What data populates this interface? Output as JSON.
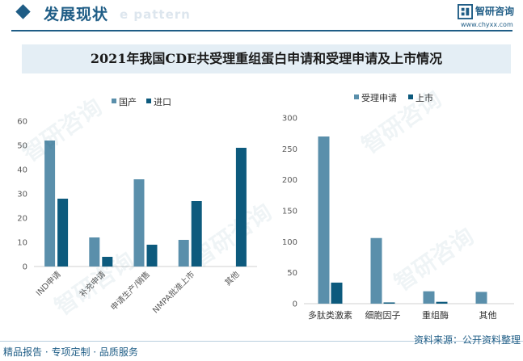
{
  "header": {
    "title": "发展现状",
    "watermark_text": "e pattern"
  },
  "brand": {
    "name": "智研咨询",
    "url": "www.chyxx.com"
  },
  "banner": {
    "title": "2021年我国CDE共受理重组蛋白申请和受理申请及上市情况"
  },
  "watermark": "智研咨询",
  "chart_data": [
    {
      "type": "bar",
      "categories": [
        "IND申请",
        "补充申请",
        "申请生产/销售",
        "NMPA批准上市",
        "其他"
      ],
      "series": [
        {
          "name": "国产",
          "values": [
            52,
            12,
            36,
            11,
            0
          ],
          "color": "#5a8fab"
        },
        {
          "name": "进口",
          "values": [
            28,
            4,
            9,
            27,
            49
          ],
          "color": "#0d5a7d"
        }
      ],
      "ylim": [
        0,
        60
      ],
      "yticks": [
        0,
        10,
        20,
        30,
        40,
        50,
        60
      ],
      "legend": "top",
      "grid": false
    },
    {
      "type": "bar",
      "categories": [
        "多肽类激素",
        "细胞因子",
        "重组酶",
        "其他"
      ],
      "series": [
        {
          "name": "受理申请",
          "values": [
            270,
            106,
            20,
            19
          ],
          "color": "#5a8fab"
        },
        {
          "name": "上市",
          "values": [
            34,
            2,
            3,
            0
          ],
          "color": "#0d5a7d"
        }
      ],
      "ylim": [
        0,
        300
      ],
      "yticks": [
        0,
        50,
        100,
        150,
        200,
        250,
        300
      ],
      "legend": "top",
      "grid": false
    }
  ],
  "footer": {
    "left": "精品报告 · 专项定制 · 品质服务",
    "source": "资料来源：公开资料整理"
  }
}
